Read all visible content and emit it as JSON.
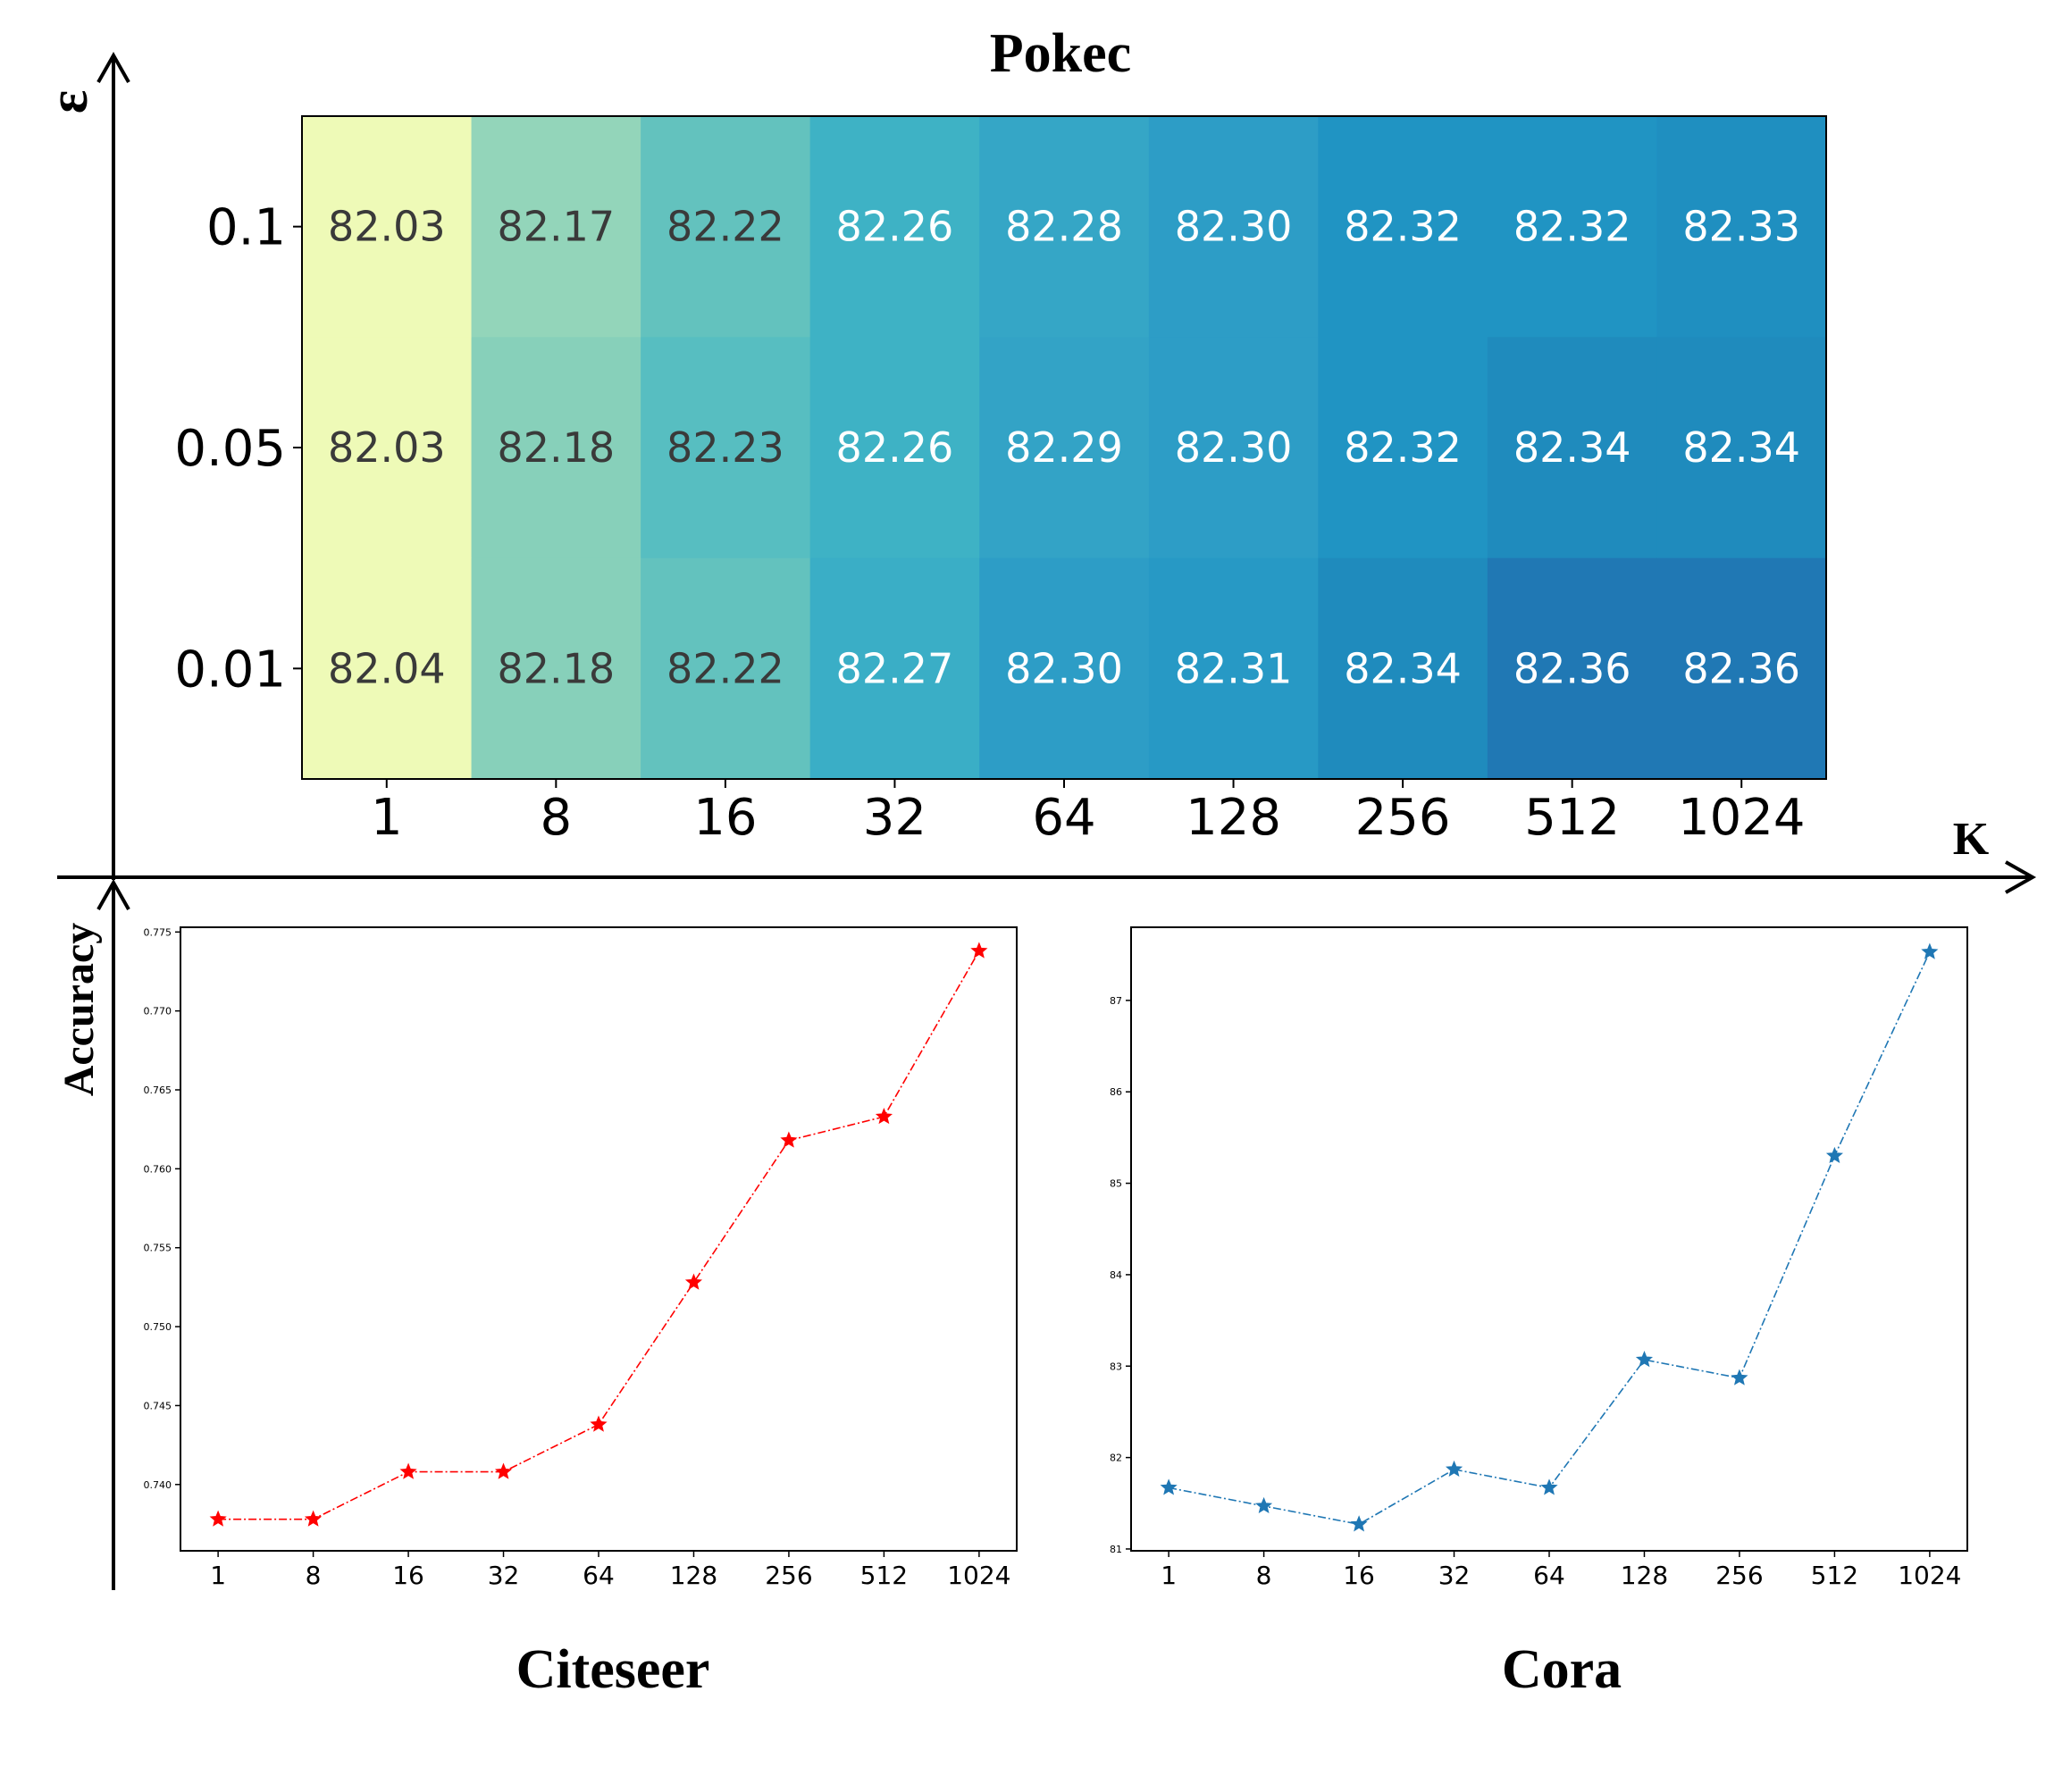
{
  "figure": {
    "epsilon_symbol": "ε",
    "k_symbol": "K",
    "accuracy_label": "Accuracy"
  },
  "chart_data": [
    {
      "type": "heatmap",
      "title": "Pokec",
      "x_categories": [
        "1",
        "8",
        "16",
        "32",
        "64",
        "128",
        "256",
        "512",
        "1024"
      ],
      "y_categories": [
        "0.1",
        "0.05",
        "0.01"
      ],
      "values": [
        [
          82.03,
          82.17,
          82.22,
          82.26,
          82.28,
          82.3,
          82.32,
          82.32,
          82.33
        ],
        [
          82.03,
          82.18,
          82.23,
          82.26,
          82.29,
          82.3,
          82.32,
          82.34,
          82.34
        ],
        [
          82.04,
          82.18,
          82.22,
          82.27,
          82.3,
          82.31,
          82.34,
          82.36,
          82.36
        ]
      ],
      "colormap": "YlGnBu",
      "cell_colors": [
        [
          "#eefab7",
          "#93d5ba",
          "#63c2be",
          "#3eb2c5",
          "#35a6c6",
          "#2d9dc6",
          "#2094c3",
          "#2094c3",
          "#1f8fc0"
        ],
        [
          "#eefab7",
          "#87d0ba",
          "#57bec1",
          "#3eb2c5",
          "#33a3c6",
          "#2d9dc6",
          "#2094c3",
          "#1f8bbd",
          "#1f8bbd"
        ],
        [
          "#eefab7",
          "#87d0ba",
          "#63c2be",
          "#3aaec6",
          "#2d9dc6",
          "#2799c5",
          "#1f8bbd",
          "#2078b4",
          "#2078b4"
        ]
      ],
      "dark_text_color": "#3a3a3a",
      "light_text_color": "#ffffff"
    },
    {
      "type": "line",
      "title": "Citeseer",
      "categories": [
        "1",
        "8",
        "16",
        "32",
        "64",
        "128",
        "256",
        "512",
        "1024"
      ],
      "series": [
        {
          "values": [
            0.7378,
            0.7378,
            0.7408,
            0.7408,
            0.7438,
            0.7528,
            0.7618,
            0.7633,
            0.7738
          ],
          "color": "#ff0000",
          "marker": "star",
          "linestyle": "dash-dot"
        }
      ],
      "ylim": [
        0.7358,
        0.7753
      ],
      "yticks": [
        "0.740",
        "0.745",
        "0.750",
        "0.755",
        "0.760",
        "0.765",
        "0.770",
        "0.775"
      ],
      "ylabel": "Accuracy"
    },
    {
      "type": "line",
      "title": "Cora",
      "categories": [
        "1",
        "8",
        "16",
        "32",
        "64",
        "128",
        "256",
        "512",
        "1024"
      ],
      "series": [
        {
          "values": [
            81.67,
            81.47,
            81.27,
            81.87,
            81.67,
            83.07,
            82.87,
            85.3,
            87.53
          ],
          "color": "#1f77b4",
          "marker": "star",
          "linestyle": "dash-dot"
        }
      ],
      "ylim": [
        80.98,
        87.8
      ],
      "yticks": [
        "81",
        "82",
        "83",
        "84",
        "85",
        "86",
        "87"
      ]
    }
  ]
}
